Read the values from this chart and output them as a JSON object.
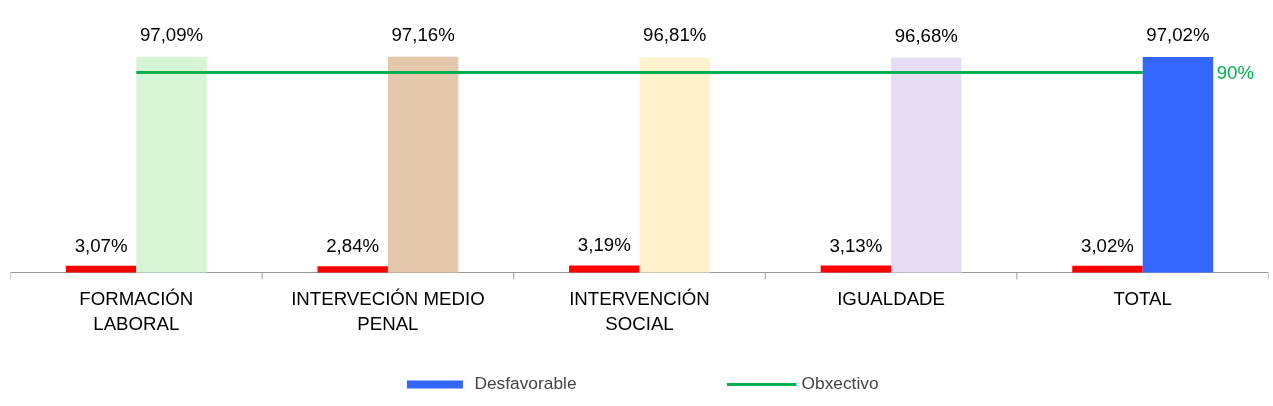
{
  "chart_data": {
    "type": "bar",
    "categories": [
      "FORMACIÓN\nLABORAL",
      "INTERVECIÓN MEDIO\nPENAL",
      "INTERVENCIÓN\nSOCIAL",
      "IGUALDADE",
      "TOTAL"
    ],
    "series": [
      {
        "color": "#ff0000",
        "values": [
          3.07,
          2.84,
          3.19,
          3.13,
          3.02
        ],
        "value_labels": [
          "3,07%",
          "2,84%",
          "3,19%",
          "3,13%",
          "3,02%"
        ]
      },
      {
        "name": "Desfavorable",
        "color": "#3366ff",
        "colors": [
          "#d5f5d5",
          "#e3c8ab",
          "#fff2cc",
          "#e6dcf3",
          "#3366ff"
        ],
        "values": [
          97.09,
          97.16,
          96.81,
          96.68,
          97.02
        ],
        "value_labels": [
          "97,09%",
          "97,16%",
          "96,81%",
          "96,68%",
          "97,02%"
        ]
      },
      {
        "type": "line",
        "name": "Obxectivo",
        "color": "#00b050",
        "values": [
          90,
          90,
          90,
          90,
          90
        ]
      }
    ],
    "annotations": [
      "90%"
    ],
    "legend": "bottom"
  }
}
